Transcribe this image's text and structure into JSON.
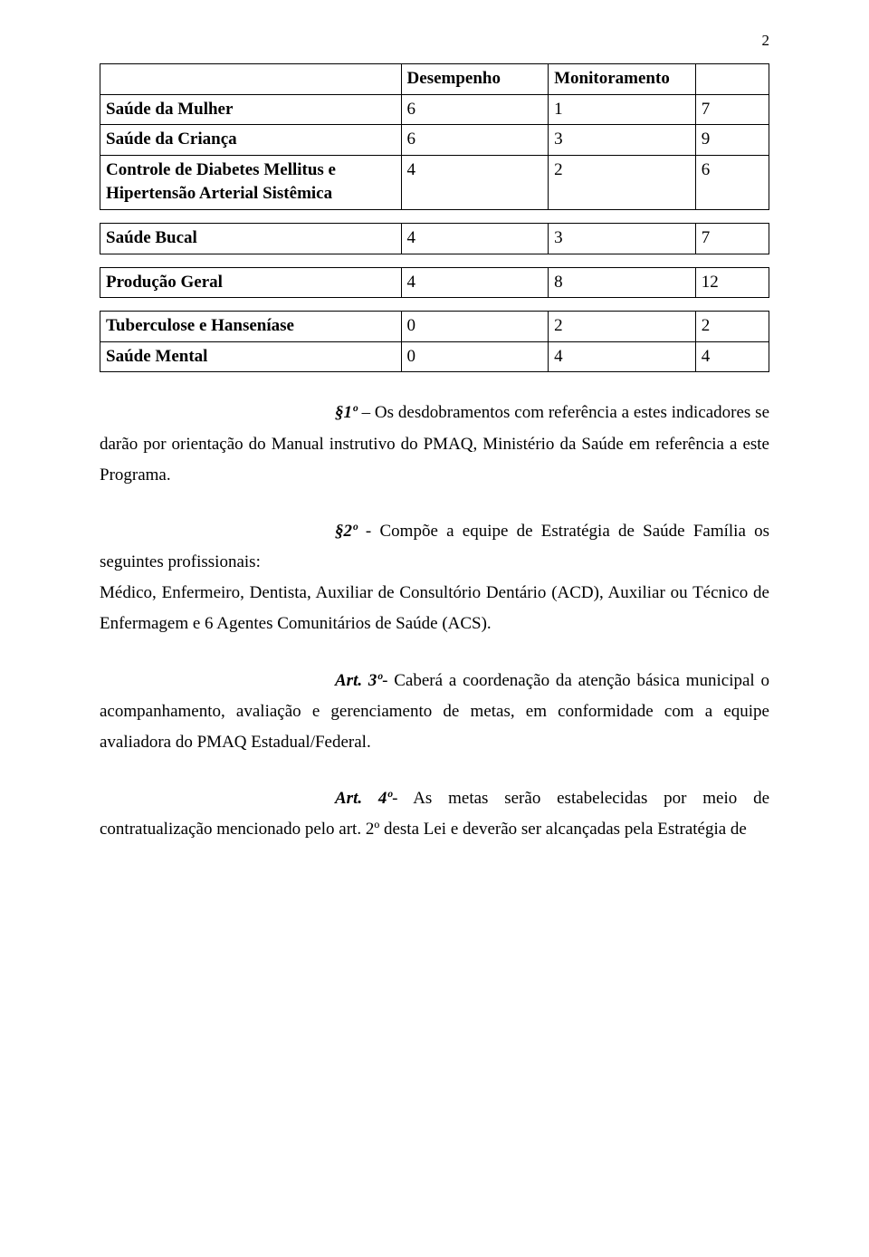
{
  "page_number": "2",
  "tables": {
    "t1": {
      "header": {
        "c0": "",
        "c1": "Desempenho",
        "c2": "Monitoramento",
        "c3": ""
      },
      "rows": [
        {
          "c0": "Saúde da Mulher",
          "c1": "6",
          "c2": "1",
          "c3": "7"
        },
        {
          "c0": "Saúde da Criança",
          "c1": "6",
          "c2": "3",
          "c3": "9"
        },
        {
          "c0": "Controle de Diabetes Mellitus e Hipertensão Arterial Sistêmica",
          "c1": "4",
          "c2": "2",
          "c3": "6"
        }
      ]
    },
    "t2": {
      "rows": [
        {
          "c0": "Saúde Bucal",
          "c1": "4",
          "c2": "3",
          "c3": "7"
        }
      ]
    },
    "t3": {
      "rows": [
        {
          "c0": "Produção Geral",
          "c1": "4",
          "c2": "8",
          "c3": "12"
        }
      ]
    },
    "t4": {
      "rows": [
        {
          "c0": "Tuberculose e Hanseníase",
          "c1": "0",
          "c2": "2",
          "c3": "2"
        },
        {
          "c0": "Saúde Mental",
          "c1": "0",
          "c2": "4",
          "c3": "4"
        }
      ]
    }
  },
  "paragraphs": {
    "p1": {
      "lead": "§1º",
      "text": " – Os desdobramentos com referência a estes indicadores se darão por orientação do Manual instrutivo do PMAQ, Ministério da Saúde em referência a este Programa."
    },
    "p2": {
      "lead": "§2º",
      "text_a": " - Compõe a equipe de Estratégia de Saúde Família os seguintes profissionais:",
      "text_b": "Médico, Enfermeiro, Dentista, Auxiliar de Consultório Dentário (ACD), Auxiliar ou Técnico de Enfermagem e 6 Agentes Comunitários de Saúde (ACS)."
    },
    "p3": {
      "lead": "Art. 3º",
      "text": "- Caberá a coordenação da atenção básica municipal o acompanhamento, avaliação e gerenciamento de metas, em conformidade com a equipe avaliadora do PMAQ Estadual/Federal."
    },
    "p4": {
      "lead": "Art. 4º",
      "text": "- As metas serão estabelecidas por meio de contratualização mencionado pelo art. 2º desta Lei e deverão ser alcançadas pela Estratégia de"
    }
  }
}
